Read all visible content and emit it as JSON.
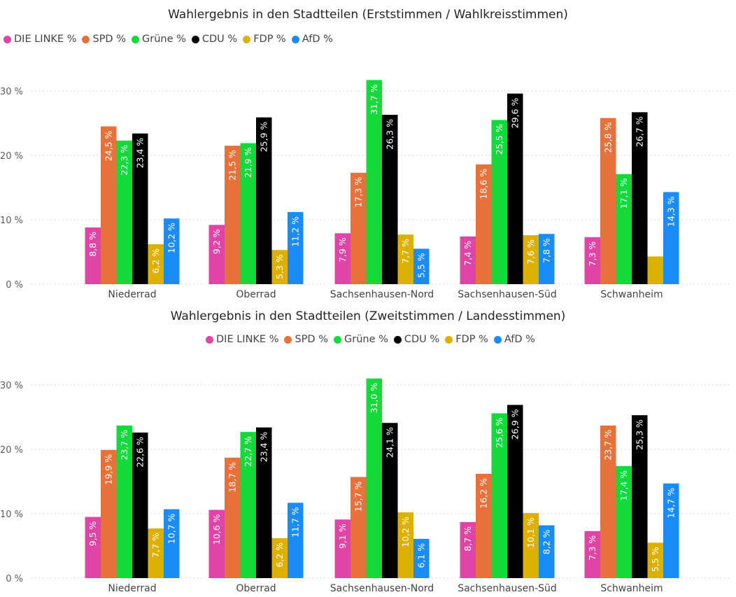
{
  "chart_data": [
    {
      "type": "bar",
      "title": "Wahlergebnis in den Stadtteilen (Erststimmen / Wahlkreisstimmen)",
      "categories": [
        "Niederrad",
        "Oberrad",
        "Sachsenhausen-Nord",
        "Sachsenhausen-Süd",
        "Schwanheim"
      ],
      "y_ticks": [
        "0 %",
        "10 %",
        "20 %",
        "30 %"
      ],
      "ylim": [
        0,
        33
      ],
      "grid": true,
      "legend_position": "top-left",
      "series": [
        {
          "name": "DIE LINKE %",
          "color": "#E044A7",
          "values": [
            8.8,
            9.2,
            7.9,
            7.4,
            7.3
          ],
          "labels": [
            "8,8 %",
            "9,2 %",
            "7,9 %",
            "7,4 %",
            "7,3 %"
          ]
        },
        {
          "name": "SPD %",
          "color": "#E8703A",
          "values": [
            24.5,
            21.5,
            17.3,
            18.6,
            25.8
          ],
          "labels": [
            "24,5 %",
            "21,5 %",
            "17,3 %",
            "18,6 %",
            "25,8 %"
          ]
        },
        {
          "name": "Grüne %",
          "color": "#14D93A",
          "values": [
            22.3,
            21.9,
            31.7,
            25.5,
            17.1
          ],
          "labels": [
            "22,3 %",
            "21,9 %",
            "31,7 %",
            "25,5 %",
            "17,1 %"
          ]
        },
        {
          "name": "CDU %",
          "color": "#000000",
          "values": [
            23.4,
            25.9,
            26.3,
            29.6,
            26.7
          ],
          "labels": [
            "23,4 %",
            "25,9 %",
            "26,3 %",
            "29,6 %",
            "26,7 %"
          ]
        },
        {
          "name": "FDP %",
          "color": "#DDB000",
          "values": [
            6.2,
            5.3,
            7.7,
            7.6,
            4.3
          ],
          "labels": [
            "6,2 %",
            "5,3 %",
            "7,7 %",
            "7,6 %",
            ""
          ]
        },
        {
          "name": "AfD %",
          "color": "#1A8CF5",
          "values": [
            10.2,
            11.2,
            5.5,
            7.8,
            14.3
          ],
          "labels": [
            "10,2 %",
            "11,2 %",
            "5,5 %",
            "7,8 %",
            "14,3 %"
          ]
        }
      ]
    },
    {
      "type": "bar",
      "title": "Wahlergebnis in den Stadtteilen (Zweitstimmen / Landesstimmen)",
      "categories": [
        "Niederrad",
        "Oberrad",
        "Sachsenhausen-Nord",
        "Sachsenhausen-Süd",
        "Schwanheim"
      ],
      "y_ticks": [
        "0 %",
        "10 %",
        "20 %",
        "30 %"
      ],
      "ylim": [
        0,
        33
      ],
      "grid": true,
      "legend_position": "top-center",
      "series": [
        {
          "name": "DIE LINKE %",
          "color": "#E044A7",
          "values": [
            9.5,
            10.6,
            9.1,
            8.7,
            7.3
          ],
          "labels": [
            "9,5 %",
            "10,6 %",
            "9,1 %",
            "8,7 %",
            "7,3 %"
          ]
        },
        {
          "name": "SPD %",
          "color": "#E8703A",
          "values": [
            19.9,
            18.7,
            15.7,
            16.2,
            23.7
          ],
          "labels": [
            "19,9 %",
            "18,7 %",
            "15,7 %",
            "16,2 %",
            "23,7 %"
          ]
        },
        {
          "name": "Grüne %",
          "color": "#14D93A",
          "values": [
            23.7,
            22.7,
            31.0,
            25.6,
            17.4
          ],
          "labels": [
            "23,7 %",
            "22,7 %",
            "31,0 %",
            "25,6 %",
            "17,4 %"
          ]
        },
        {
          "name": "CDU %",
          "color": "#000000",
          "values": [
            22.6,
            23.4,
            24.1,
            26.9,
            25.3
          ],
          "labels": [
            "22,6 %",
            "23,4 %",
            "24,1 %",
            "26,9 %",
            "25,3 %"
          ]
        },
        {
          "name": "FDP %",
          "color": "#DDB000",
          "values": [
            7.7,
            6.2,
            10.2,
            10.1,
            5.5
          ],
          "labels": [
            "7,7 %",
            "6,2 %",
            "10,2 %",
            "10,1 %",
            "5,5 %"
          ]
        },
        {
          "name": "AfD %",
          "color": "#1A8CF5",
          "values": [
            10.7,
            11.7,
            6.1,
            8.2,
            14.7
          ],
          "labels": [
            "10,7 %",
            "11,7 %",
            "6,1 %",
            "8,2 %",
            "14,7 %"
          ]
        }
      ]
    }
  ]
}
